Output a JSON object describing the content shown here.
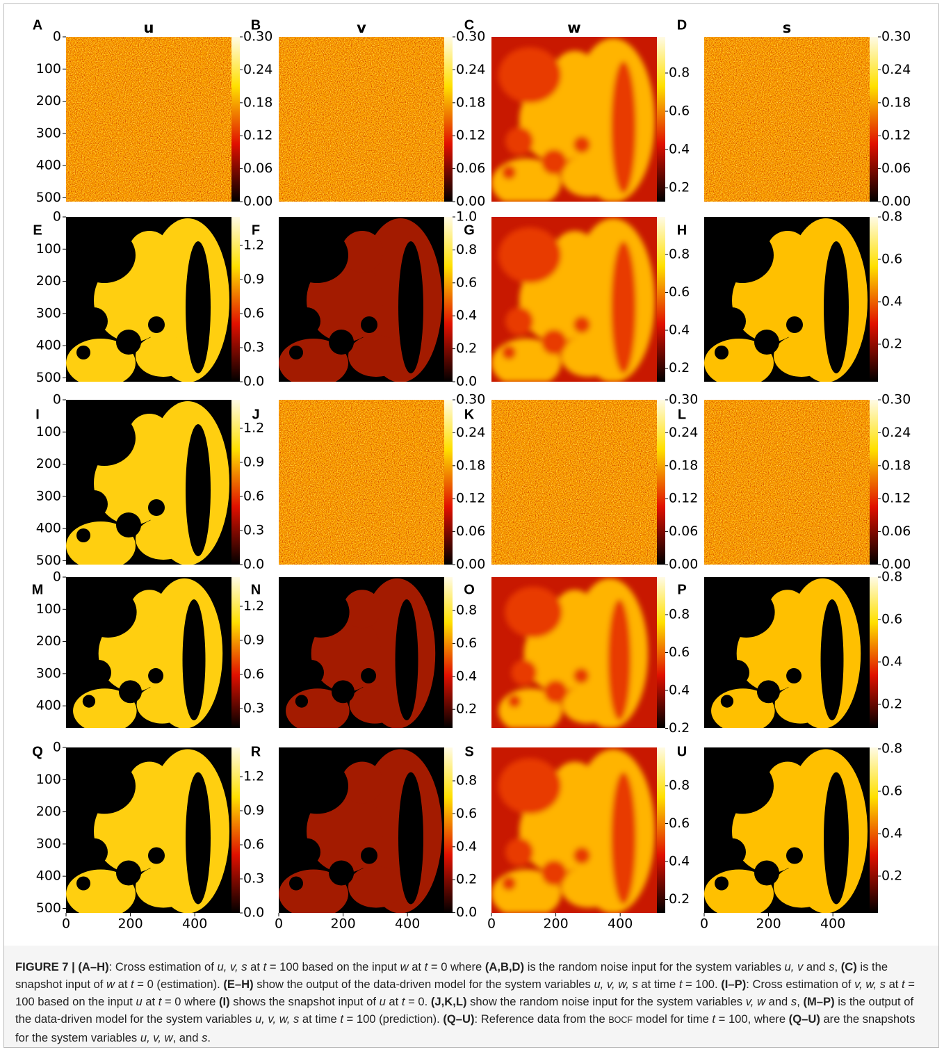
{
  "column_titles": [
    "u",
    "v",
    "w",
    "s"
  ],
  "panels": [
    {
      "label": "A",
      "colorbar_ticks": [
        "0.30",
        "0.24",
        "0.18",
        "0.12",
        "0.06",
        "0.00"
      ]
    },
    {
      "label": "B",
      "colorbar_ticks": [
        "0.30",
        "0.24",
        "0.18",
        "0.12",
        "0.06",
        "0.00"
      ]
    },
    {
      "label": "C",
      "colorbar_ticks": [
        "0.8",
        "0.6",
        "0.4",
        "0.2"
      ]
    },
    {
      "label": "D",
      "colorbar_ticks": [
        "0.30",
        "0.24",
        "0.18",
        "0.12",
        "0.06",
        "0.00"
      ]
    },
    {
      "label": "E",
      "colorbar_ticks": [
        "1.2",
        "0.9",
        "0.6",
        "0.3",
        "0.0"
      ]
    },
    {
      "label": "F",
      "colorbar_ticks": [
        "1.0",
        "0.8",
        "0.6",
        "0.4",
        "0.2",
        "0.0"
      ]
    },
    {
      "label": "G",
      "colorbar_ticks": [
        "0.8",
        "0.6",
        "0.4",
        "0.2"
      ]
    },
    {
      "label": "H",
      "colorbar_ticks": [
        "0.8",
        "0.6",
        "0.4",
        "0.2"
      ]
    },
    {
      "label": "I",
      "colorbar_ticks": [
        "1.2",
        "0.9",
        "0.6",
        "0.3",
        "0.0"
      ]
    },
    {
      "label": "J",
      "colorbar_ticks": [
        "0.30",
        "0.24",
        "0.18",
        "0.12",
        "0.06",
        "0.00"
      ]
    },
    {
      "label": "K",
      "colorbar_ticks": [
        "0.30",
        "0.24",
        "0.18",
        "0.12",
        "0.06",
        "0.00"
      ]
    },
    {
      "label": "L",
      "colorbar_ticks": [
        "0.30",
        "0.24",
        "0.18",
        "0.12",
        "0.06",
        "0.00"
      ]
    },
    {
      "label": "M",
      "colorbar_ticks": [
        "1.2",
        "0.9",
        "0.6",
        "0.3"
      ]
    },
    {
      "label": "N",
      "colorbar_ticks": [
        "0.8",
        "0.6",
        "0.4",
        "0.2"
      ]
    },
    {
      "label": "O",
      "colorbar_ticks": [
        "0.8",
        "0.6",
        "0.4",
        "0.2"
      ]
    },
    {
      "label": "P",
      "colorbar_ticks": [
        "0.8",
        "0.6",
        "0.4",
        "0.2"
      ]
    },
    {
      "label": "Q",
      "colorbar_ticks": [
        "1.2",
        "0.9",
        "0.6",
        "0.3",
        "0.0"
      ]
    },
    {
      "label": "R",
      "colorbar_ticks": [
        "0.8",
        "0.6",
        "0.4",
        "0.2",
        "0.0"
      ]
    },
    {
      "label": "S",
      "colorbar_ticks": [
        "0.8",
        "0.6",
        "0.4",
        "0.2"
      ]
    },
    {
      "label": "U",
      "colorbar_ticks": [
        "0.8",
        "0.6",
        "0.4",
        "0.2"
      ]
    }
  ],
  "row_y_ticks": [
    [
      "0",
      "100",
      "200",
      "300",
      "400",
      "500"
    ],
    [
      "0",
      "100",
      "200",
      "300",
      "400",
      "500"
    ],
    [
      "0",
      "100",
      "200",
      "300",
      "400",
      "500"
    ],
    [
      "0",
      "100",
      "200",
      "300",
      "400"
    ],
    [
      "0",
      "100",
      "200",
      "300",
      "400",
      "500"
    ]
  ],
  "x_ticks": [
    "0",
    "200",
    "400"
  ],
  "caption": [
    "FIGURE 7 | (A–H)",
    ": Cross estimation of ",
    "u, v, s",
    " at ",
    "t",
    " = 100 based on the input ",
    "w",
    " at ",
    "t",
    " = 0 where ",
    "(A,B,D)",
    " is the random noise input for the system variables ",
    "u, v",
    " and ",
    "s",
    ", ",
    "(C)",
    " is the snapshot input of ",
    "w",
    " at ",
    "t",
    " = 0 (estimation). ",
    "(E–H)",
    " show the output of the data-driven model for the system variables ",
    "u, v, w, s",
    " at time ",
    "t",
    " = 100. ",
    "(I–P)",
    ": Cross estimation of ",
    "v, w, s",
    " at ",
    "t",
    " = 100 based on the input ",
    "u",
    " at ",
    "t",
    " = 0 where ",
    "(I)",
    " shows the snapshot input of ",
    "u",
    " at ",
    "t",
    " = 0. ",
    "(J,K,L)",
    " show the random noise input for the system variables ",
    "v, w",
    " and ",
    "s",
    ", ",
    "(M–P)",
    " is the output of the data-driven model for the system variables ",
    "u, v, w, s",
    " at time ",
    "t",
    " = 100 (prediction). ",
    "(Q–U)",
    ": Reference data from the ",
    "BOCF",
    " model for time ",
    "t",
    " = 100, where ",
    "(Q–U)",
    " are the snapshots for the system variables ",
    "u, v, w",
    ", and ",
    "s",
    "."
  ]
}
